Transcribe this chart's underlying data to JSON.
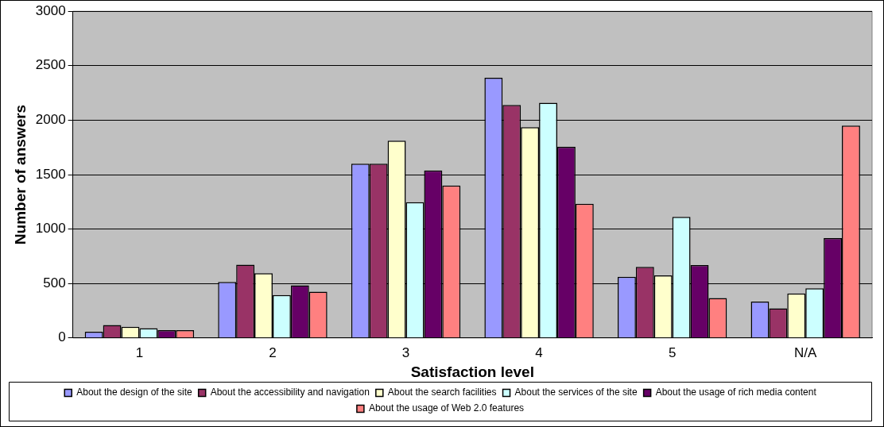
{
  "chart_data": {
    "type": "bar",
    "xlabel": "Satisfaction level",
    "ylabel": "Number of answers",
    "categories": [
      "1",
      "2",
      "3",
      "4",
      "5",
      "N/A"
    ],
    "series": [
      {
        "name": "About the design of the site",
        "color": "#9999ff",
        "values": [
          56,
          514,
          1600,
          2390,
          561,
          333
        ]
      },
      {
        "name": "About the accessibility and navigation",
        "color": "#993366",
        "values": [
          119,
          672,
          1600,
          2140,
          653,
          272
        ]
      },
      {
        "name": "About the search facilities",
        "color": "#ffffcc",
        "values": [
          103,
          594,
          1811,
          1936,
          575,
          408
        ]
      },
      {
        "name": "About the services of the site",
        "color": "#ccffff",
        "values": [
          89,
          394,
          1247,
          2160,
          1111,
          456
        ]
      },
      {
        "name": "About the usage of rich media content",
        "color": "#660066",
        "values": [
          72,
          483,
          1539,
          1756,
          669,
          917
        ]
      },
      {
        "name": "About the usage of Web 2.0 features",
        "color": "#ff8080",
        "values": [
          72,
          425,
          1400,
          1233,
          367,
          1950
        ]
      }
    ],
    "ylim": [
      0,
      3000
    ],
    "yticks": [
      0,
      500,
      1000,
      1500,
      2000,
      2500,
      3000
    ],
    "grid": "y",
    "legend": "bottom"
  }
}
